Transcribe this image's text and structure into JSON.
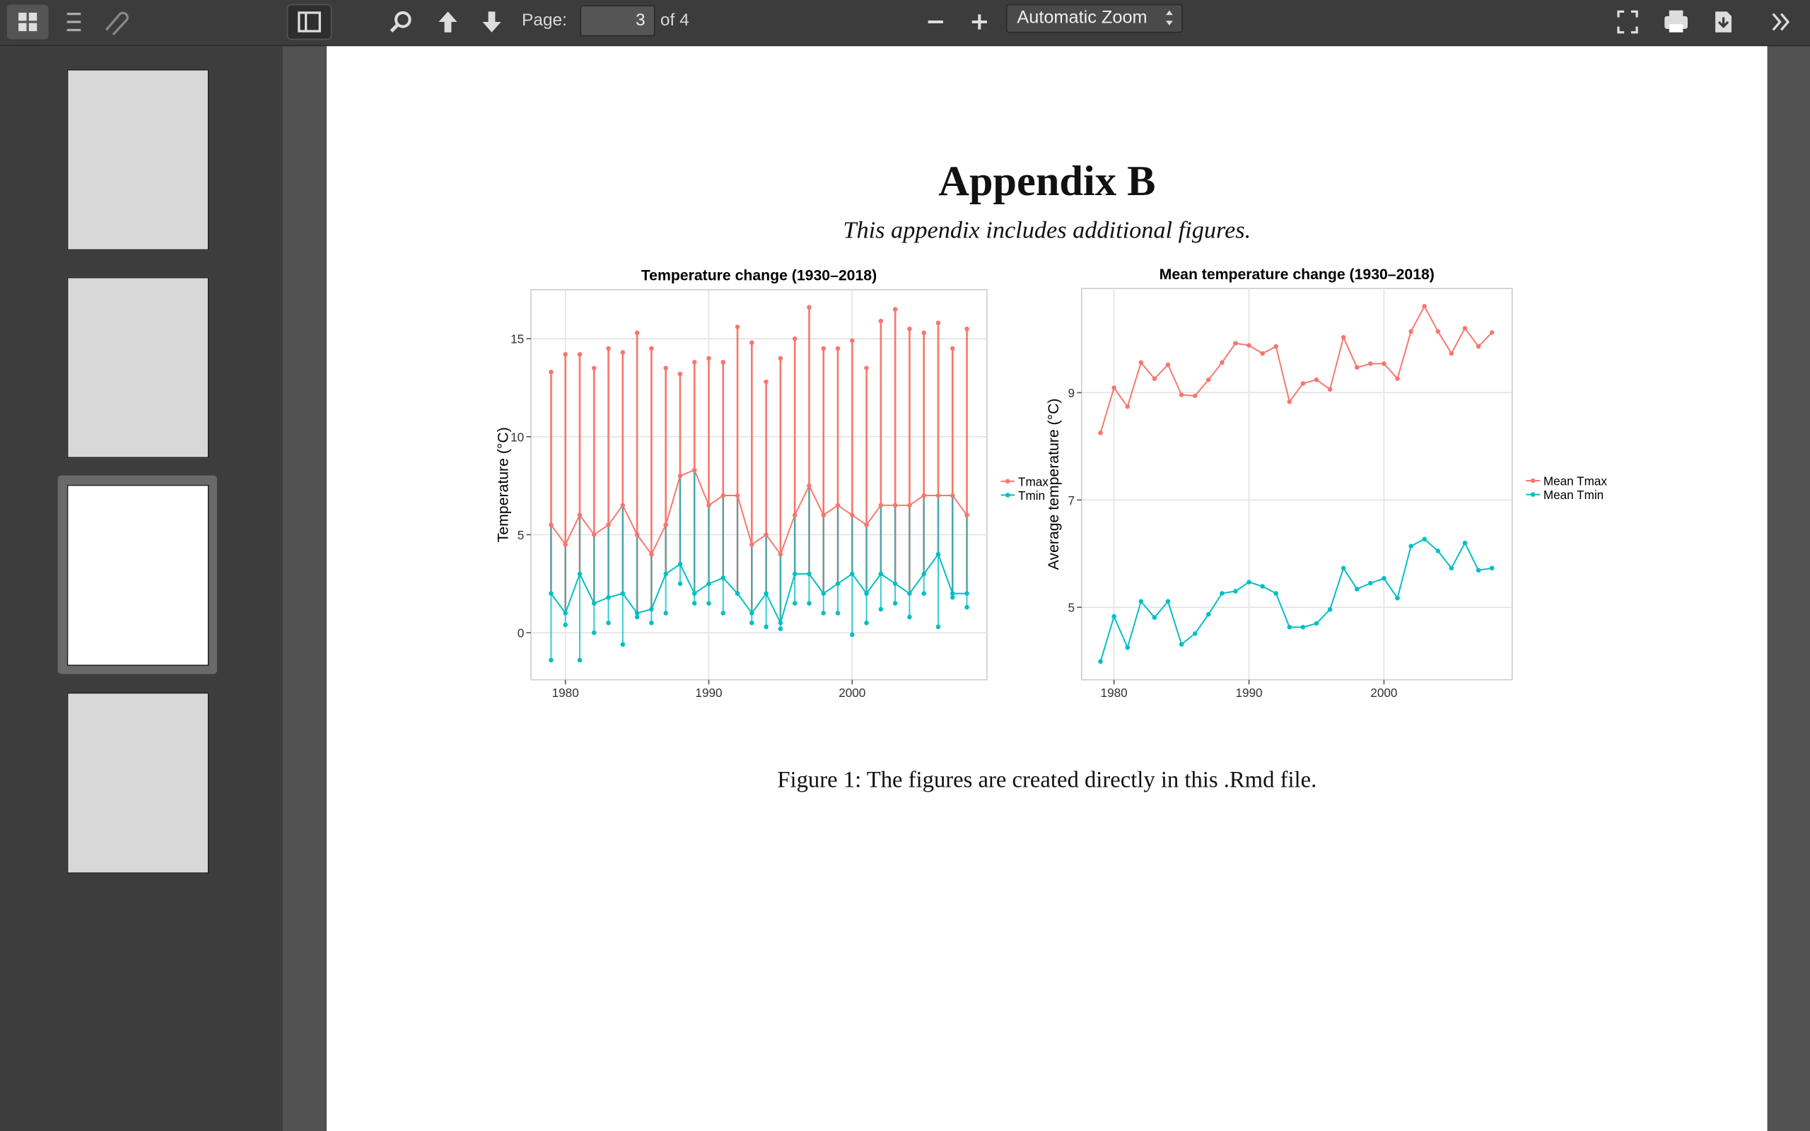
{
  "toolbar": {
    "page_label": "Page:",
    "page_number": "3",
    "page_count": "of 4",
    "zoom": "Automatic Zoom"
  },
  "document": {
    "title": "Appendix B",
    "subtitle": "This appendix includes additional figures.",
    "caption": "Figure 1: The figures are created directly in this .Rmd file."
  },
  "chart_data": [
    {
      "type": "line",
      "title": "Temperature change (1930–2018)",
      "y_label": "Temperature (°C)",
      "x": [
        1979,
        1980,
        1981,
        1982,
        1983,
        1984,
        1985,
        1986,
        1987,
        1988,
        1989,
        1990,
        1991,
        1992,
        1993,
        1994,
        1995,
        1996,
        1997,
        1998,
        1999,
        2000,
        2001,
        2002,
        2003,
        2004,
        2005,
        2006,
        2007,
        2008
      ],
      "xlim": [
        1977.6,
        2009.4
      ],
      "xticks": [
        1980,
        1990,
        2000
      ],
      "ylim": [
        -2.4,
        17.5
      ],
      "yticks": [
        0,
        5,
        10,
        15
      ],
      "grid": true,
      "legend_position": "right",
      "series": [
        {
          "name": "Tmax",
          "color": "#f8766d",
          "values": [
            5.5,
            4.5,
            6.0,
            5.0,
            5.5,
            6.5,
            5.0,
            4.0,
            5.5,
            8.0,
            8.3,
            6.5,
            7.0,
            7.0,
            4.5,
            5.0,
            4.0,
            6.0,
            7.5,
            6.0,
            6.5,
            6.0,
            5.5,
            6.5,
            6.5,
            6.5,
            7.0,
            7.0,
            7.0,
            6.0
          ],
          "high": [
            13.3,
            14.2,
            14.2,
            13.5,
            14.5,
            14.3,
            15.3,
            14.5,
            13.5,
            13.2,
            13.8,
            14.0,
            13.8,
            15.6,
            14.8,
            12.8,
            14.0,
            15.0,
            16.6,
            14.5,
            14.5,
            14.9,
            13.5,
            15.9,
            16.5,
            15.5,
            15.3,
            15.8,
            14.5,
            15.5
          ]
        },
        {
          "name": "Tmin",
          "color": "#00bfc4",
          "values": [
            2.0,
            1.0,
            3.0,
            1.5,
            1.8,
            2.0,
            1.0,
            1.2,
            3.0,
            3.5,
            2.0,
            2.5,
            2.8,
            2.0,
            1.0,
            2.0,
            0.5,
            3.0,
            3.0,
            2.0,
            2.5,
            3.0,
            2.0,
            3.0,
            2.5,
            2.0,
            3.0,
            4.0,
            2.0,
            2.0
          ],
          "low": [
            -1.4,
            0.4,
            -1.4,
            0.0,
            0.5,
            -0.6,
            0.8,
            0.5,
            1.0,
            2.5,
            1.5,
            1.5,
            1.0,
            2.0,
            0.5,
            0.3,
            0.2,
            1.5,
            1.5,
            1.0,
            1.0,
            -0.1,
            0.5,
            1.2,
            1.5,
            0.8,
            2.0,
            0.3,
            1.8,
            1.3
          ]
        }
      ]
    },
    {
      "type": "line",
      "title": "Mean temperature change (1930–2018)",
      "y_label": "Average temperature (°C)",
      "x": [
        1979,
        1980,
        1981,
        1982,
        1983,
        1984,
        1985,
        1986,
        1987,
        1988,
        1989,
        1990,
        1991,
        1992,
        1993,
        1994,
        1995,
        1996,
        1997,
        1998,
        1999,
        2000,
        2001,
        2002,
        2003,
        2004,
        2005,
        2006,
        2007,
        2008
      ],
      "xlim": [
        1977.6,
        2009.5
      ],
      "xticks": [
        1980,
        1990,
        2000
      ],
      "ylim": [
        3.65,
        10.94
      ],
      "yticks": [
        5,
        7,
        9
      ],
      "grid": true,
      "legend_position": "right",
      "series": [
        {
          "name": "Mean Tmax",
          "color": "#f8766d",
          "values": [
            8.25,
            9.09,
            8.74,
            9.56,
            9.26,
            9.52,
            8.96,
            8.94,
            9.24,
            9.56,
            9.92,
            9.88,
            9.73,
            9.86,
            8.83,
            9.17,
            9.24,
            9.06,
            10.03,
            9.47,
            9.54,
            9.54,
            9.26,
            10.14,
            10.61,
            10.14,
            9.73,
            10.2,
            9.86,
            10.12
          ]
        },
        {
          "name": "Mean Tmin",
          "color": "#00bfc4",
          "values": [
            3.99,
            4.83,
            4.25,
            5.11,
            4.81,
            5.11,
            4.31,
            4.51,
            4.87,
            5.26,
            5.3,
            5.47,
            5.39,
            5.26,
            4.63,
            4.63,
            4.7,
            4.96,
            5.73,
            5.34,
            5.45,
            5.54,
            5.17,
            6.14,
            6.27,
            6.05,
            5.73,
            6.2,
            5.69,
            5.73
          ]
        }
      ]
    }
  ]
}
